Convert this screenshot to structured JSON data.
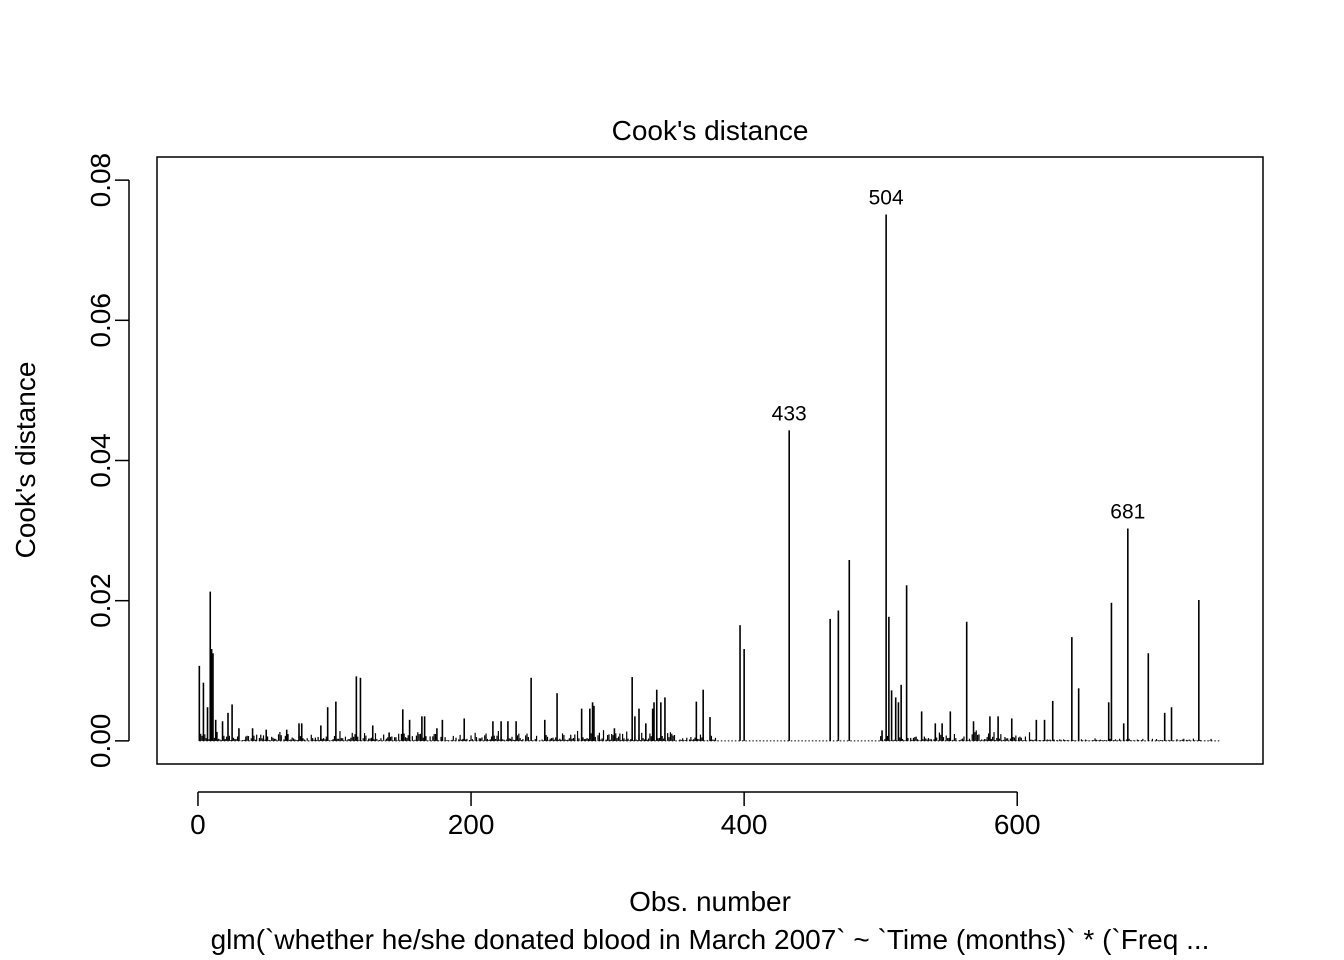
{
  "chart_data": {
    "type": "bar",
    "title": "Cook's distance",
    "xlabel": "Obs. number",
    "ylabel": "Cook's distance",
    "subtitle": "glm(`whether he/she donated blood in March 2007` ~ `Time (months)` * (`Freq ...",
    "xlim": [
      -30,
      780
    ],
    "ylim": [
      -0.0033,
      0.0833
    ],
    "x_ticks": [
      0,
      200,
      400,
      600
    ],
    "x_tick_labels": [
      "0",
      "200",
      "400",
      "600"
    ],
    "y_ticks": [
      0.0,
      0.02,
      0.04,
      0.06,
      0.08
    ],
    "y_tick_labels": [
      "0.00",
      "0.02",
      "0.04",
      "0.06",
      "0.08"
    ],
    "n_obs": 748,
    "grid": false,
    "legend": "none",
    "color": "#000000",
    "labeled_points": [
      {
        "x": 433,
        "y": 0.0443,
        "label": "433"
      },
      {
        "x": 504,
        "y": 0.0751,
        "label": "504"
      },
      {
        "x": 681,
        "y": 0.0303,
        "label": "681"
      }
    ],
    "spikes": [
      {
        "x": 1,
        "y": 0.0107
      },
      {
        "x": 4,
        "y": 0.0083
      },
      {
        "x": 7,
        "y": 0.0048
      },
      {
        "x": 9,
        "y": 0.0213
      },
      {
        "x": 10,
        "y": 0.0131
      },
      {
        "x": 11,
        "y": 0.0125
      },
      {
        "x": 13,
        "y": 0.003
      },
      {
        "x": 18,
        "y": 0.0028
      },
      {
        "x": 22,
        "y": 0.004
      },
      {
        "x": 25,
        "y": 0.0052
      },
      {
        "x": 30,
        "y": 0.0018
      },
      {
        "x": 40,
        "y": 0.0018
      },
      {
        "x": 50,
        "y": 0.0016
      },
      {
        "x": 65,
        "y": 0.0016
      },
      {
        "x": 74,
        "y": 0.0025
      },
      {
        "x": 76,
        "y": 0.0025
      },
      {
        "x": 90,
        "y": 0.0022
      },
      {
        "x": 95,
        "y": 0.0048
      },
      {
        "x": 101,
        "y": 0.0056
      },
      {
        "x": 116,
        "y": 0.0092
      },
      {
        "x": 119,
        "y": 0.009
      },
      {
        "x": 128,
        "y": 0.0022
      },
      {
        "x": 140,
        "y": 0.0012
      },
      {
        "x": 150,
        "y": 0.0045
      },
      {
        "x": 155,
        "y": 0.003
      },
      {
        "x": 164,
        "y": 0.0035
      },
      {
        "x": 166,
        "y": 0.0035
      },
      {
        "x": 175,
        "y": 0.0018
      },
      {
        "x": 179,
        "y": 0.003
      },
      {
        "x": 195,
        "y": 0.0032
      },
      {
        "x": 216,
        "y": 0.0028
      },
      {
        "x": 222,
        "y": 0.0028
      },
      {
        "x": 227,
        "y": 0.0028
      },
      {
        "x": 233,
        "y": 0.0028
      },
      {
        "x": 244,
        "y": 0.009
      },
      {
        "x": 254,
        "y": 0.003
      },
      {
        "x": 263,
        "y": 0.0068
      },
      {
        "x": 281,
        "y": 0.0046
      },
      {
        "x": 287,
        "y": 0.0046
      },
      {
        "x": 289,
        "y": 0.0055
      },
      {
        "x": 290,
        "y": 0.005
      },
      {
        "x": 305,
        "y": 0.0018
      },
      {
        "x": 318,
        "y": 0.0091
      },
      {
        "x": 320,
        "y": 0.0035
      },
      {
        "x": 323,
        "y": 0.0046
      },
      {
        "x": 328,
        "y": 0.0025
      },
      {
        "x": 333,
        "y": 0.0046
      },
      {
        "x": 334,
        "y": 0.0055
      },
      {
        "x": 336,
        "y": 0.0073
      },
      {
        "x": 339,
        "y": 0.0055
      },
      {
        "x": 342,
        "y": 0.0062
      },
      {
        "x": 365,
        "y": 0.0056
      },
      {
        "x": 370,
        "y": 0.0073
      },
      {
        "x": 375,
        "y": 0.0034
      },
      {
        "x": 397,
        "y": 0.0165
      },
      {
        "x": 400,
        "y": 0.0131
      },
      {
        "x": 433,
        "y": 0.0443
      },
      {
        "x": 463,
        "y": 0.0174
      },
      {
        "x": 469,
        "y": 0.0186
      },
      {
        "x": 477,
        "y": 0.0258
      },
      {
        "x": 501,
        "y": 0.0015
      },
      {
        "x": 504,
        "y": 0.0751
      },
      {
        "x": 506,
        "y": 0.0177
      },
      {
        "x": 508,
        "y": 0.0072
      },
      {
        "x": 511,
        "y": 0.0062
      },
      {
        "x": 513,
        "y": 0.0055
      },
      {
        "x": 515,
        "y": 0.008
      },
      {
        "x": 519,
        "y": 0.0222
      },
      {
        "x": 530,
        "y": 0.0042
      },
      {
        "x": 540,
        "y": 0.0025
      },
      {
        "x": 545,
        "y": 0.0025
      },
      {
        "x": 551,
        "y": 0.0042
      },
      {
        "x": 563,
        "y": 0.017
      },
      {
        "x": 568,
        "y": 0.0028
      },
      {
        "x": 580,
        "y": 0.0035
      },
      {
        "x": 586,
        "y": 0.0035
      },
      {
        "x": 596,
        "y": 0.0032
      },
      {
        "x": 614,
        "y": 0.003
      },
      {
        "x": 620,
        "y": 0.003
      },
      {
        "x": 626,
        "y": 0.0057
      },
      {
        "x": 640,
        "y": 0.0148
      },
      {
        "x": 645,
        "y": 0.0075
      },
      {
        "x": 667,
        "y": 0.0055
      },
      {
        "x": 669,
        "y": 0.0197
      },
      {
        "x": 678,
        "y": 0.0025
      },
      {
        "x": 681,
        "y": 0.0303
      },
      {
        "x": 696,
        "y": 0.0125
      },
      {
        "x": 708,
        "y": 0.004
      },
      {
        "x": 713,
        "y": 0.0048
      },
      {
        "x": 733,
        "y": 0.0201
      }
    ]
  }
}
